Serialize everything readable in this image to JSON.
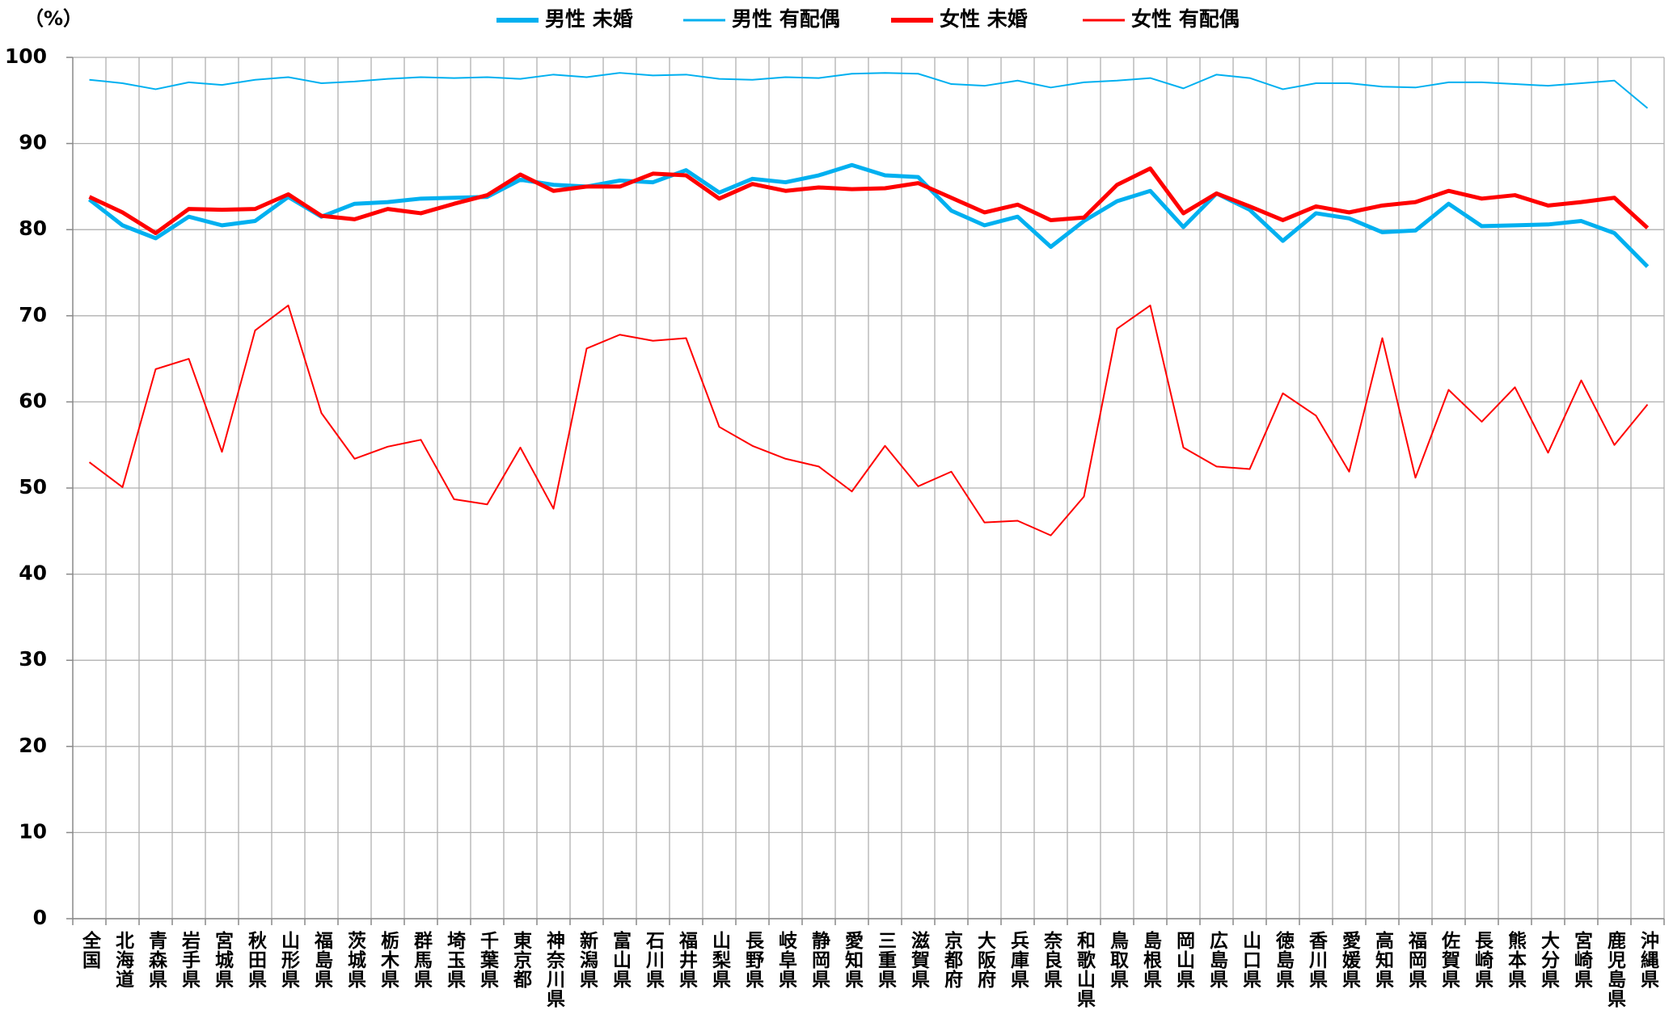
{
  "chart_data": {
    "type": "line",
    "y_label": "（%）",
    "categories": [
      "全国",
      "北海道",
      "青森県",
      "岩手県",
      "宮城県",
      "秋田県",
      "山形県",
      "福島県",
      "茨城県",
      "栃木県",
      "群馬県",
      "埼玉県",
      "千葉県",
      "東京都",
      "神奈川県",
      "新潟県",
      "富山県",
      "石川県",
      "福井県",
      "山梨県",
      "長野県",
      "岐阜県",
      "静岡県",
      "愛知県",
      "三重県",
      "滋賀県",
      "京都府",
      "大阪府",
      "兵庫県",
      "奈良県",
      "和歌山県",
      "鳥取県",
      "島根県",
      "岡山県",
      "広島県",
      "山口県",
      "徳島県",
      "香川県",
      "愛媛県",
      "高知県",
      "福岡県",
      "佐賀県",
      "長崎県",
      "熊本県",
      "大分県",
      "宮崎県",
      "鹿児島県",
      "沖縄県"
    ],
    "series": [
      {
        "name": "男性 未婚",
        "color": "#00b0f0",
        "line_width": 5,
        "values": [
          83.5,
          80.5,
          79,
          81.5,
          80.5,
          81,
          83.8,
          81.5,
          83,
          83.2,
          83.6,
          83.7,
          83.8,
          85.8,
          85.2,
          85,
          85.7,
          85.5,
          86.9,
          84.3,
          85.9,
          85.5,
          86.3,
          87.5,
          86.3,
          86.1,
          82.2,
          80.5,
          81.5,
          78,
          81,
          83.3,
          84.5,
          80.3,
          84.2,
          82.3,
          78.7,
          81.9,
          81.3,
          79.7,
          79.9,
          83,
          80.4,
          80.5,
          80.6,
          81,
          79.6,
          75.7
        ]
      },
      {
        "name": "男性 有配偶",
        "color": "#00b0f0",
        "line_width": 2,
        "values": [
          97.4,
          97.0,
          96.3,
          97.1,
          96.8,
          97.4,
          97.7,
          97.0,
          97.2,
          97.5,
          97.7,
          97.6,
          97.7,
          97.5,
          98.0,
          97.7,
          98.2,
          97.9,
          98.0,
          97.5,
          97.4,
          97.7,
          97.6,
          98.1,
          98.2,
          98.1,
          96.9,
          96.7,
          97.3,
          96.5,
          97.1,
          97.3,
          97.6,
          96.4,
          98.0,
          97.6,
          96.3,
          97.0,
          97.0,
          96.6,
          96.5,
          97.1,
          97.1,
          96.9,
          96.7,
          97.0,
          97.3,
          94.1
        ]
      },
      {
        "name": "女性 未婚",
        "color": "#ff0000",
        "line_width": 5,
        "values": [
          83.8,
          82.0,
          79.6,
          82.4,
          82.3,
          82.4,
          84.1,
          81.6,
          81.2,
          82.4,
          81.9,
          83.0,
          84.0,
          86.4,
          84.5,
          85.0,
          85.0,
          86.5,
          86.3,
          83.6,
          85.3,
          84.5,
          84.9,
          84.7,
          84.8,
          85.4,
          83.7,
          82.0,
          82.9,
          81.1,
          81.4,
          85.2,
          87.1,
          81.9,
          84.2,
          82.7,
          81.1,
          82.7,
          82.0,
          82.8,
          83.2,
          84.5,
          83.6,
          84.0,
          82.8,
          83.2,
          83.7,
          80.2
        ]
      },
      {
        "name": "女性 有配偶",
        "color": "#ff0000",
        "line_width": 2,
        "values": [
          53.0,
          50.1,
          63.8,
          65.0,
          54.2,
          68.3,
          71.2,
          58.7,
          53.4,
          54.8,
          55.6,
          48.7,
          48.1,
          54.7,
          47.6,
          66.2,
          67.8,
          67.1,
          67.4,
          57.1,
          54.9,
          53.4,
          52.5,
          49.6,
          54.9,
          50.2,
          51.9,
          46.0,
          46.2,
          44.5,
          49.0,
          68.5,
          71.2,
          54.7,
          52.5,
          52.2,
          61.0,
          58.4,
          51.9,
          67.4,
          51.2,
          61.4,
          57.7,
          61.7,
          54.1,
          62.5,
          55.0,
          59.7
        ]
      }
    ],
    "ylim": [
      0,
      100
    ],
    "yticks": [
      0,
      10,
      20,
      30,
      40,
      50,
      60,
      70,
      80,
      90,
      100
    ],
    "grid": true,
    "legend": "top"
  }
}
